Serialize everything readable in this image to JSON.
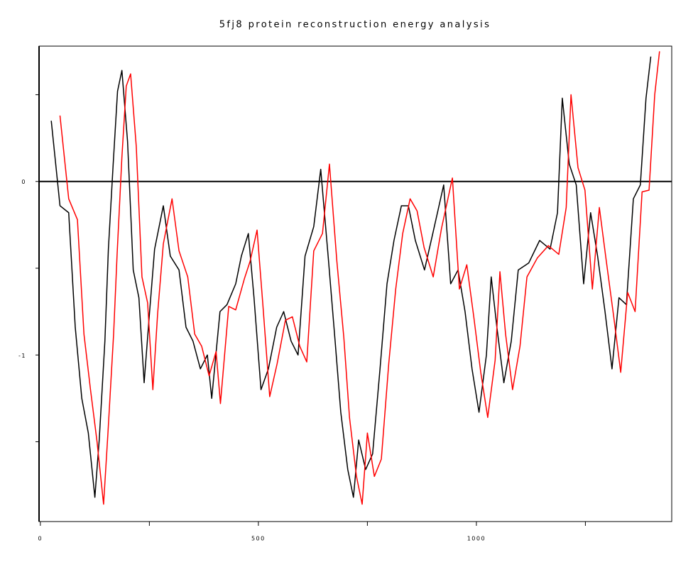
{
  "chart_data": {
    "type": "line",
    "title": "5fj8 protein reconstruction energy analysis",
    "xlim": [
      -3,
      1448
    ],
    "ylim": [
      -1.96,
      0.78
    ],
    "xticks": [
      0,
      500,
      1000
    ],
    "x_minor_ticks": [
      250,
      750,
      1250
    ],
    "yticks": [
      0,
      -1
    ],
    "y_minor_ticks": [
      0.5,
      -0.5,
      -1.5
    ],
    "hline": 0,
    "hline_color": "#000000",
    "series": [
      {
        "name": "black",
        "color": "#000000",
        "x": [
          25,
          45,
          65,
          80,
          95,
          110,
          125,
          135,
          148,
          156,
          167,
          177,
          187,
          200,
          213,
          226,
          238,
          249,
          262,
          282,
          298,
          318,
          334,
          350,
          367,
          383,
          393,
          412,
          428,
          448,
          461,
          477,
          490,
          506,
          523,
          542,
          558,
          575,
          591,
          607,
          627,
          643,
          660,
          676,
          689,
          705,
          718,
          730,
          746,
          762,
          779,
          795,
          811,
          828,
          844,
          860,
          881,
          900,
          925,
          941,
          958,
          974,
          990,
          1006,
          1023,
          1034,
          1047,
          1063,
          1080,
          1096,
          1120,
          1145,
          1169,
          1186,
          1197,
          1213,
          1229,
          1246,
          1262,
          1278,
          1295,
          1311,
          1327,
          1344,
          1360,
          1376,
          1389,
          1400
        ],
        "values": [
          0.35,
          -0.14,
          -0.18,
          -0.84,
          -1.25,
          -1.45,
          -1.82,
          -1.49,
          -0.92,
          -0.39,
          0.1,
          0.52,
          0.64,
          0.23,
          -0.51,
          -0.67,
          -1.16,
          -0.8,
          -0.39,
          -0.14,
          -0.43,
          -0.51,
          -0.84,
          -0.92,
          -1.08,
          -1.0,
          -1.25,
          -0.75,
          -0.71,
          -0.59,
          -0.43,
          -0.3,
          -0.67,
          -1.2,
          -1.08,
          -0.84,
          -0.75,
          -0.92,
          -1.0,
          -0.43,
          -0.26,
          0.07,
          -0.43,
          -0.92,
          -1.33,
          -1.66,
          -1.82,
          -1.49,
          -1.66,
          -1.57,
          -1.08,
          -0.59,
          -0.34,
          -0.14,
          -0.14,
          -0.34,
          -0.51,
          -0.3,
          -0.02,
          -0.59,
          -0.51,
          -0.75,
          -1.08,
          -1.33,
          -1.0,
          -0.55,
          -0.84,
          -1.16,
          -0.92,
          -0.51,
          -0.47,
          -0.34,
          -0.39,
          -0.18,
          0.48,
          0.1,
          -0.02,
          -0.59,
          -0.18,
          -0.43,
          -0.75,
          -1.08,
          -0.67,
          -0.71,
          -0.1,
          -0.02,
          0.48,
          0.72
        ]
      },
      {
        "name": "red",
        "color": "#ff0000",
        "x": [
          45,
          65,
          85,
          100,
          115,
          130,
          145,
          155,
          168,
          176,
          187,
          197,
          207,
          220,
          233,
          246,
          258,
          269,
          282,
          302,
          318,
          338,
          354,
          370,
          387,
          403,
          413,
          432,
          448,
          468,
          481,
          497,
          510,
          526,
          543,
          562,
          578,
          595,
          611,
          627,
          647,
          663,
          680,
          696,
          709,
          725,
          738,
          750,
          766,
          782,
          799,
          815,
          831,
          848,
          864,
          880,
          901,
          920,
          945,
          961,
          978,
          994,
          1010,
          1026,
          1043,
          1054,
          1067,
          1083,
          1100,
          1116,
          1140,
          1165,
          1189,
          1206,
          1217,
          1233,
          1249,
          1266,
          1282,
          1298,
          1315,
          1331,
          1347,
          1364,
          1380,
          1396,
          1409,
          1420
        ],
        "values": [
          0.38,
          -0.1,
          -0.22,
          -0.88,
          -1.2,
          -1.5,
          -1.86,
          -1.45,
          -0.88,
          -0.42,
          0.14,
          0.55,
          0.62,
          0.2,
          -0.55,
          -0.7,
          -1.2,
          -0.76,
          -0.36,
          -0.1,
          -0.4,
          -0.55,
          -0.88,
          -0.95,
          -1.12,
          -0.98,
          -1.28,
          -0.72,
          -0.74,
          -0.56,
          -0.46,
          -0.28,
          -0.7,
          -1.24,
          -1.05,
          -0.8,
          -0.78,
          -0.95,
          -1.04,
          -0.4,
          -0.3,
          0.1,
          -0.46,
          -0.9,
          -1.36,
          -1.7,
          -1.86,
          -1.45,
          -1.7,
          -1.6,
          -1.05,
          -0.62,
          -0.3,
          -0.1,
          -0.17,
          -0.38,
          -0.55,
          -0.27,
          0.02,
          -0.62,
          -0.48,
          -0.78,
          -1.1,
          -1.36,
          -1.03,
          -0.52,
          -0.88,
          -1.2,
          -0.95,
          -0.55,
          -0.44,
          -0.37,
          -0.42,
          -0.15,
          0.5,
          0.08,
          -0.05,
          -0.62,
          -0.15,
          -0.46,
          -0.78,
          -1.1,
          -0.64,
          -0.75,
          -0.06,
          -0.05,
          0.5,
          0.75
        ]
      }
    ]
  }
}
